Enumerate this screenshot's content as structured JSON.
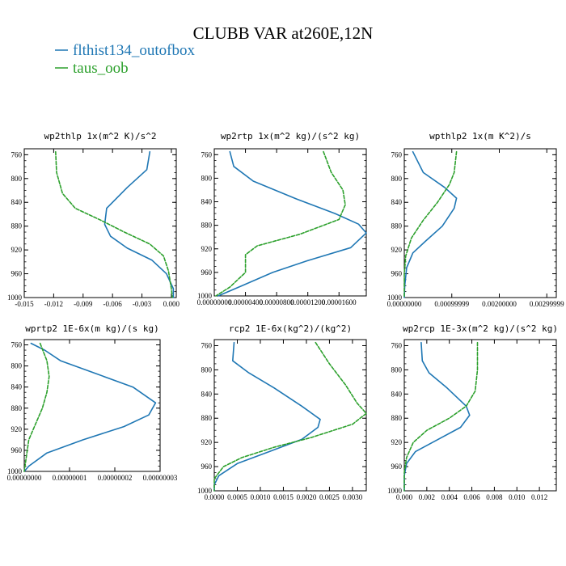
{
  "figure": {
    "title": "CLUBB VAR at260E,12N",
    "legend": [
      {
        "label": "flthist134_outofbox",
        "color": "#1f77b4"
      },
      {
        "label": "taus_oob",
        "color": "#2ca02c"
      }
    ]
  },
  "chart_data": [
    {
      "type": "line",
      "title": "wp2thlp  1x(m^2 K)/s^2",
      "xlim": [
        -0.015,
        0.0005
      ],
      "ylim": [
        1000,
        750
      ],
      "x_ticks": [
        "-0.015",
        "-0.012",
        "-0.009",
        "-0.006",
        "-0.003",
        "0.000"
      ],
      "x_tick_values": [
        -0.015,
        -0.012,
        -0.009,
        -0.006,
        -0.003,
        0.0
      ],
      "y_ticks": [
        "760",
        "800",
        "840",
        "880",
        "920",
        "960",
        "1000"
      ],
      "y_tick_values": [
        760,
        800,
        840,
        880,
        920,
        960,
        1000
      ],
      "series": [
        {
          "name": "flthist134_outofbox",
          "color": "#1f77b4",
          "dash": "",
          "points": [
            [
              -0.0022,
              755
            ],
            [
              -0.0025,
              785
            ],
            [
              -0.0045,
              815
            ],
            [
              -0.0066,
              850
            ],
            [
              -0.0068,
              877
            ],
            [
              -0.0062,
              897
            ],
            [
              -0.0045,
              917
            ],
            [
              -0.002,
              937
            ],
            [
              -0.0005,
              960
            ],
            [
              0.0002,
              985
            ],
            [
              0.0002,
              1000
            ]
          ]
        },
        {
          "name": "taus_oob",
          "color": "#2ca02c",
          "dash": "4,2",
          "points": [
            [
              -0.0118,
              755
            ],
            [
              -0.0117,
              790
            ],
            [
              -0.0111,
              825
            ],
            [
              -0.0098,
              850
            ],
            [
              -0.0072,
              870
            ],
            [
              -0.0048,
              890
            ],
            [
              -0.0022,
              910
            ],
            [
              -0.0008,
              930
            ],
            [
              -0.0003,
              955
            ],
            [
              0.0,
              985
            ],
            [
              0.0001,
              1000
            ]
          ]
        }
      ]
    },
    {
      "type": "line",
      "title": "wp2rtp  1x(m^2 kg)/(s^2 kg)",
      "xlim": [
        0.0,
        1.95e-05
      ],
      "ylim": [
        1000,
        750
      ],
      "x_ticks": [
        "0.00000000",
        "0.00000400",
        "0.00000800",
        "0.00001200",
        "0.00001600"
      ],
      "x_tick_values": [
        0.0,
        4e-06,
        8e-06,
        1.2e-05,
        1.6e-05
      ],
      "y_ticks": [
        "760",
        "800",
        "840",
        "880",
        "920",
        "960",
        "1000"
      ],
      "y_tick_values": [
        760,
        800,
        840,
        880,
        920,
        960,
        1000
      ],
      "series": [
        {
          "name": "flthist134_outofbox",
          "color": "#1f77b4",
          "dash": "",
          "points": [
            [
              2e-06,
              755
            ],
            [
              2.5e-06,
              780
            ],
            [
              5e-06,
              805
            ],
            [
              1.05e-05,
              835
            ],
            [
              1.55e-05,
              860
            ],
            [
              1.85e-05,
              878
            ],
            [
              1.95e-05,
              893
            ],
            [
              1.75e-05,
              918
            ],
            [
              1.2e-05,
              940
            ],
            [
              7.5e-06,
              960
            ],
            [
              3.5e-06,
              983
            ],
            [
              5e-07,
              1000
            ]
          ]
        },
        {
          "name": "taus_oob",
          "color": "#2ca02c",
          "dash": "4,2",
          "points": [
            [
              1.4e-05,
              755
            ],
            [
              1.5e-05,
              790
            ],
            [
              1.65e-05,
              820
            ],
            [
              1.68e-05,
              845
            ],
            [
              1.6e-05,
              870
            ],
            [
              1.1e-05,
              895
            ],
            [
              5.5e-06,
              915
            ],
            [
              4e-06,
              930
            ],
            [
              4e-06,
              960
            ],
            [
              2e-06,
              985
            ],
            [
              2e-07,
              1000
            ]
          ]
        }
      ]
    },
    {
      "type": "line",
      "title": "wpthlp2  1x(m K^2)/s",
      "xlim": [
        0.0,
        0.0032
      ],
      "ylim": [
        1000,
        750
      ],
      "x_ticks": [
        "0.00000000",
        "0.00099999",
        "0.00200000",
        "0.00299999"
      ],
      "x_tick_values": [
        0.0,
        0.001,
        0.002,
        0.003
      ],
      "y_ticks": [
        "760",
        "800",
        "840",
        "880",
        "920",
        "960",
        "1000"
      ],
      "y_tick_values": [
        760,
        800,
        840,
        880,
        920,
        960,
        1000
      ],
      "series": [
        {
          "name": "flthist134_outofbox",
          "color": "#1f77b4",
          "dash": "",
          "points": [
            [
              0.00018,
              755
            ],
            [
              0.0004,
              790
            ],
            [
              0.00085,
              815
            ],
            [
              0.0011,
              833
            ],
            [
              0.00105,
              850
            ],
            [
              0.0008,
              880
            ],
            [
              0.00045,
              905
            ],
            [
              0.00018,
              925
            ],
            [
              5e-05,
              950
            ],
            [
              1e-05,
              980
            ],
            [
              0.0,
              1000
            ]
          ]
        },
        {
          "name": "taus_oob",
          "color": "#2ca02c",
          "dash": "4,2",
          "points": [
            [
              0.0011,
              755
            ],
            [
              0.00105,
              790
            ],
            [
              0.00095,
              810
            ],
            [
              0.0007,
              840
            ],
            [
              0.0004,
              870
            ],
            [
              0.00015,
              900
            ],
            [
              3e-05,
              930
            ],
            [
              0.0,
              960
            ],
            [
              0.0,
              1000
            ]
          ]
        }
      ]
    },
    {
      "type": "line",
      "title": "wprtp2  1E-6x(m kg)/(s kg)",
      "xlim": [
        0.0,
        3e-08
      ],
      "ylim": [
        1000,
        750
      ],
      "x_ticks": [
        "0.00000000",
        "0.00000001",
        "0.00000002",
        "0.00000003"
      ],
      "x_tick_values": [
        0.0,
        1e-08,
        2e-08,
        3e-08
      ],
      "y_ticks": [
        "760",
        "800",
        "840",
        "880",
        "920",
        "960",
        "1000"
      ],
      "y_tick_values": [
        760,
        800,
        840,
        880,
        920,
        960,
        1000
      ],
      "series": [
        {
          "name": "flthist134_outofbox",
          "color": "#1f77b4",
          "dash": "",
          "points": [
            [
              1.5e-09,
              757
            ],
            [
              4.5e-09,
              770
            ],
            [
              8e-09,
              790
            ],
            [
              1.6e-08,
              815
            ],
            [
              2.4e-08,
              840
            ],
            [
              2.9e-08,
              870
            ],
            [
              2.75e-08,
              893
            ],
            [
              2.2e-08,
              915
            ],
            [
              1.3e-08,
              940
            ],
            [
              5e-09,
              965
            ],
            [
              1e-09,
              990
            ],
            [
              0.0,
              1000
            ]
          ]
        },
        {
          "name": "taus_oob",
          "color": "#2ca02c",
          "dash": "4,2",
          "points": [
            [
              3.5e-09,
              757
            ],
            [
              5e-09,
              790
            ],
            [
              5.5e-09,
              820
            ],
            [
              5e-09,
              850
            ],
            [
              4e-09,
              880
            ],
            [
              2.5e-09,
              910
            ],
            [
              1e-09,
              940
            ],
            [
              5e-10,
              970
            ],
            [
              0.0,
              1000
            ]
          ]
        }
      ]
    },
    {
      "type": "line",
      "title": "rcp2  1E-6x(kg^2)/(kg^2)",
      "xlim": [
        0.0,
        0.0033
      ],
      "ylim": [
        1000,
        750
      ],
      "x_ticks": [
        "0.0000",
        "0.0005",
        "0.0010",
        "0.0015",
        "0.0020",
        "0.0025",
        "0.0030"
      ],
      "x_tick_values": [
        0.0,
        0.0005,
        0.001,
        0.0015,
        0.002,
        0.0025,
        0.003
      ],
      "y_ticks": [
        "760",
        "800",
        "840",
        "880",
        "920",
        "960",
        "1000"
      ],
      "y_tick_values": [
        760,
        800,
        840,
        880,
        920,
        960,
        1000
      ],
      "series": [
        {
          "name": "flthist134_outofbox",
          "color": "#1f77b4",
          "dash": "",
          "points": [
            [
              0.00043,
              755
            ],
            [
              0.0004,
              785
            ],
            [
              0.00075,
              805
            ],
            [
              0.0013,
              830
            ],
            [
              0.0019,
              860
            ],
            [
              0.0023,
              882
            ],
            [
              0.00225,
              895
            ],
            [
              0.0019,
              915
            ],
            [
              0.0012,
              935
            ],
            [
              0.0005,
              955
            ],
            [
              0.0001,
              975
            ],
            [
              0.0,
              990
            ],
            [
              0.0,
              1000
            ]
          ]
        },
        {
          "name": "taus_oob",
          "color": "#2ca02c",
          "dash": "4,2",
          "points": [
            [
              0.0022,
              755
            ],
            [
              0.0025,
              790
            ],
            [
              0.00285,
              825
            ],
            [
              0.0031,
              855
            ],
            [
              0.0033,
              872
            ],
            [
              0.003,
              890
            ],
            [
              0.0021,
              912
            ],
            [
              0.0013,
              928
            ],
            [
              0.0006,
              945
            ],
            [
              0.0002,
              960
            ],
            [
              0.0,
              980
            ],
            [
              0.0,
              1000
            ]
          ]
        }
      ]
    },
    {
      "type": "line",
      "title": "wp2rcp  1E-3x(m^2 kg)/(s^2 kg)",
      "xlim": [
        0.0,
        0.0135
      ],
      "ylim": [
        1000,
        750
      ],
      "x_ticks": [
        "0.000",
        "0.002",
        "0.004",
        "0.006",
        "0.008",
        "0.010",
        "0.012"
      ],
      "x_tick_values": [
        0.0,
        0.002,
        0.004,
        0.006,
        0.008,
        0.01,
        0.012
      ],
      "y_ticks": [
        "760",
        "800",
        "840",
        "880",
        "920",
        "960",
        "1000"
      ],
      "y_tick_values": [
        760,
        800,
        840,
        880,
        920,
        960,
        1000
      ],
      "series": [
        {
          "name": "flthist134_outofbox",
          "color": "#1f77b4",
          "dash": "",
          "points": [
            [
              0.0015,
              755
            ],
            [
              0.0016,
              785
            ],
            [
              0.0022,
              805
            ],
            [
              0.0038,
              830
            ],
            [
              0.0055,
              860
            ],
            [
              0.0058,
              875
            ],
            [
              0.005,
              895
            ],
            [
              0.003,
              915
            ],
            [
              0.001,
              935
            ],
            [
              0.0002,
              955
            ],
            [
              0.0,
              975
            ],
            [
              0.0,
              1000
            ]
          ]
        },
        {
          "name": "taus_oob",
          "color": "#2ca02c",
          "dash": "4,2",
          "points": [
            [
              0.0065,
              755
            ],
            [
              0.0065,
              800
            ],
            [
              0.0063,
              835
            ],
            [
              0.0055,
              860
            ],
            [
              0.004,
              880
            ],
            [
              0.002,
              900
            ],
            [
              0.0008,
              920
            ],
            [
              0.0002,
              945
            ],
            [
              0.0,
              970
            ],
            [
              0.0,
              1000
            ]
          ]
        }
      ]
    }
  ]
}
